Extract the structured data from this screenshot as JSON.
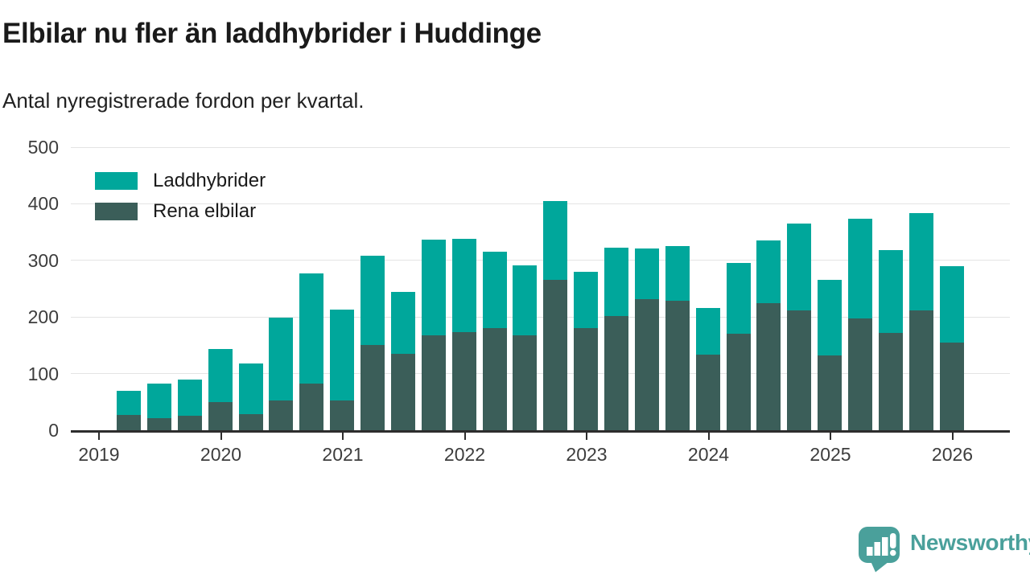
{
  "header": {
    "title": "Elbilar nu fler än laddhybrider i Huddinge",
    "subtitle": "Antal nyregistrerade fordon per kvartal."
  },
  "legend": {
    "items": [
      {
        "label": "Laddhybrider",
        "color": "#00a79b"
      },
      {
        "label": "Rena elbilar",
        "color": "#3b5e59"
      }
    ]
  },
  "chart_data": {
    "type": "bar",
    "stacked": true,
    "title": "Elbilar nu fler än laddhybrider i Huddinge",
    "subtitle": "Antal nyregistrerade fordon per kvartal.",
    "xlabel": "",
    "ylabel": "",
    "ylim": [
      0,
      500
    ],
    "yticks": [
      0,
      100,
      200,
      300,
      400,
      500
    ],
    "year_ticks": [
      "2019",
      "2020",
      "2021",
      "2022",
      "2023",
      "2024",
      "2025",
      "2026"
    ],
    "grid": true,
    "legend_position": "top-left",
    "x": [
      "2019-Q2",
      "2019-Q3",
      "2019-Q4",
      "2020-Q1",
      "2020-Q2",
      "2020-Q3",
      "2020-Q4",
      "2021-Q1",
      "2021-Q2",
      "2021-Q3",
      "2021-Q4",
      "2022-Q1",
      "2022-Q2",
      "2022-Q3",
      "2022-Q4",
      "2023-Q1",
      "2023-Q2",
      "2023-Q3",
      "2023-Q4",
      "2024-Q1",
      "2024-Q2",
      "2024-Q3",
      "2024-Q4",
      "2025-Q1",
      "2025-Q2",
      "2025-Q3",
      "2025-Q4",
      "2026-Q1"
    ],
    "series": [
      {
        "name": "Rena elbilar",
        "color": "#3b5e59",
        "stack": "bottom",
        "values": [
          27,
          21,
          26,
          50,
          29,
          52,
          83,
          52,
          151,
          135,
          168,
          173,
          181,
          167,
          266,
          180,
          202,
          232,
          229,
          133,
          170,
          224,
          212,
          132,
          197,
          172,
          212,
          155
        ]
      },
      {
        "name": "Laddhybrider",
        "color": "#00a79b",
        "stack": "top",
        "values": [
          43,
          61,
          63,
          94,
          89,
          147,
          194,
          161,
          157,
          110,
          169,
          165,
          135,
          124,
          139,
          100,
          120,
          89,
          96,
          83,
          126,
          111,
          153,
          133,
          177,
          146,
          172,
          135
        ]
      }
    ]
  },
  "footer": {
    "brand": "Newsworthy",
    "brand_color": "#4aa09b"
  },
  "colors": {
    "accent": "#00a79b",
    "dark_series": "#3b5e59",
    "axis": "#2d2d2d",
    "grid": "#e4e4e4",
    "text": "#1a1a1a"
  }
}
